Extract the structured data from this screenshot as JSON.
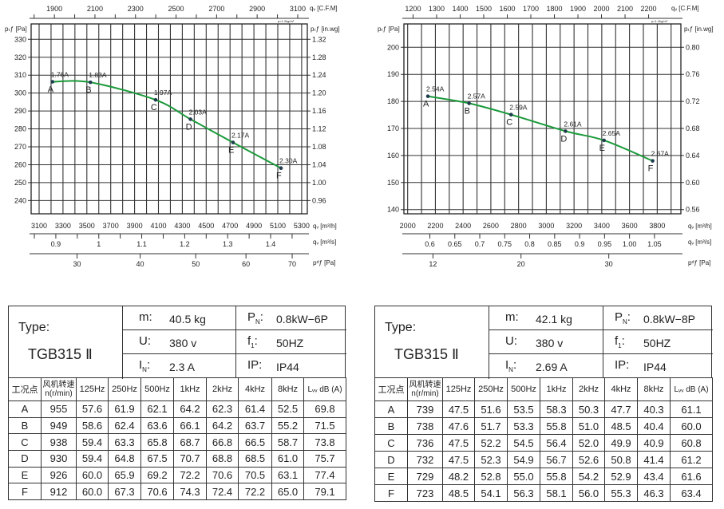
{
  "chart_data": [
    {
      "type": "line",
      "title": "",
      "units": {
        "cfm": "qᵥ [C.F.M]",
        "pa_left": "pₜƒ [Pa]",
        "inwg": "pₜƒ [in.wg]",
        "m3h": "qᵥ [m³/h]",
        "m3s": "qᵥ [m³/s]",
        "pd": "pᵈƒ [Pa]",
        "density": "ρ=1.2kg/m³"
      },
      "xlabel": "qᵥ [m³/h]",
      "ylabel": "pₜƒ [Pa]",
      "xlim": [
        3100,
        5300
      ],
      "ylim": [
        240,
        330
      ],
      "grid": true,
      "x_ticks_m3h": [
        "3100",
        "3300",
        "3500",
        "3700",
        "3900",
        "4100",
        "4300",
        "4500",
        "4700",
        "4900",
        "5100",
        "5300"
      ],
      "y_ticks_pa": [
        "240",
        "250",
        "260",
        "270",
        "280",
        "290",
        "300",
        "310",
        "320",
        "330"
      ],
      "y_ticks_inwg": [
        "0.96",
        "1.00",
        "1.04",
        "1.08",
        "1.12",
        "1.16",
        "1.20",
        "1.24",
        "1.28",
        "1.32"
      ],
      "top_ticks_cfm": [
        "1900",
        "2100",
        "2300",
        "2500",
        "2700",
        "2900",
        "3100"
      ],
      "m3s_ticks": [
        "0.9",
        "1",
        "1.1",
        "1.2",
        "1.3",
        "1.4"
      ],
      "pd_ticks": [
        "30",
        "40",
        "50",
        "60",
        "70"
      ],
      "line_color": "#1a9a3a",
      "point_color": "#1f3d4d",
      "points": [
        {
          "label": "A",
          "current": "1.76A",
          "q_m3h": 3212,
          "p_pa": 306.3
        },
        {
          "label": "B",
          "current": "1.83A",
          "q_m3h": 3530,
          "p_pa": 306.0
        },
        {
          "label": "C",
          "current": "1.97A",
          "q_m3h": 4076,
          "p_pa": 296.2
        },
        {
          "label": "D",
          "current": "2.03A",
          "q_m3h": 4368,
          "p_pa": 285.4
        },
        {
          "label": "E",
          "current": "2.17A",
          "q_m3h": 4725,
          "p_pa": 272.4
        },
        {
          "label": "F",
          "current": "2.30A",
          "q_m3h": 5127,
          "p_pa": 258.1
        }
      ]
    },
    {
      "type": "line",
      "title": "",
      "units": {
        "cfm": "qᵥ [C.F.M]",
        "pa_left": "pₜƒ [Pa]",
        "inwg": "pₜƒ [in.wg]",
        "m3h": "qᵥ [m³/h]",
        "m3s": "qᵥ [m³/s]",
        "pd": "pᵈƒ [Pa]",
        "density": "ρ=1.2kg/m³"
      },
      "xlabel": "qᵥ [m³/h]",
      "ylabel": "pₜƒ [Pa]",
      "xlim": [
        2000,
        3800
      ],
      "ylim": [
        140,
        200
      ],
      "grid": true,
      "x_ticks_m3h": [
        "2000",
        "2200",
        "2400",
        "2600",
        "2800",
        "3000",
        "3200",
        "3400",
        "3600",
        "3800"
      ],
      "y_ticks_pa": [
        "140",
        "150",
        "160",
        "170",
        "180",
        "190",
        "200"
      ],
      "y_ticks_inwg": [
        "0.56",
        "0.60",
        "0.64",
        "0.68",
        "0.72",
        "0.76",
        "0.80"
      ],
      "top_ticks_cfm": [
        "1200",
        "1300",
        "1400",
        "1500",
        "1600",
        "1700",
        "1800",
        "1900",
        "2000",
        "2100",
        "2200"
      ],
      "m3s_ticks": [
        "0.6",
        "0.65",
        "0.7",
        "0.75",
        "0.8",
        "0.85",
        "0.9",
        "0.95",
        "1.00",
        "1.05"
      ],
      "pd_ticks": [
        "12",
        "20",
        "30"
      ],
      "line_color": "#1a9a3a",
      "point_color": "#1f3d4d",
      "points": [
        {
          "label": "A",
          "current": "2.54A",
          "q_m3h": 2146,
          "p_pa": 181.9
        },
        {
          "label": "B",
          "current": "2.57A",
          "q_m3h": 2443,
          "p_pa": 179.3
        },
        {
          "label": "C",
          "current": "2.59A",
          "q_m3h": 2746,
          "p_pa": 175.1
        },
        {
          "label": "D",
          "current": "2.61A",
          "q_m3h": 3138,
          "p_pa": 169.0
        },
        {
          "label": "E",
          "current": "2.65A",
          "q_m3h": 3416,
          "p_pa": 165.6
        },
        {
          "label": "F",
          "current": "2.67A",
          "q_m3h": 3767,
          "p_pa": 158.0
        }
      ]
    }
  ],
  "tables": [
    {
      "type_label": "Type:",
      "model": "TGB315 Ⅱ",
      "specs": {
        "m_label": "m:",
        "m_value": "40.5  kg",
        "u_label": "U:",
        "u_value": "380  v",
        "in_label": "I",
        "in_sub": "N",
        "in_value": "2.3  A",
        "pn_label": "P",
        "pn_sub": "N",
        "pn_value": "0.8kW−6P",
        "f_label": "f",
        "f_sub": "1",
        "f_value": "50HZ",
        "ip_label": "IP:",
        "ip_value": "IP44"
      },
      "headers": [
        "工况点",
        "风机转速\nn(r/min)",
        "125Hz",
        "250Hz",
        "500Hz",
        "1kHz",
        "2kHz",
        "4kHz",
        "8kHz",
        "Lᵥᵥ dB (A)"
      ],
      "rows": [
        [
          "A",
          "955",
          "57.6",
          "61.9",
          "62.1",
          "64.2",
          "62.3",
          "61.4",
          "52.5",
          "69.8"
        ],
        [
          "B",
          "949",
          "58.6",
          "62.4",
          "63.6",
          "66.1",
          "64.2",
          "63.7",
          "55.2",
          "71.5"
        ],
        [
          "C",
          "938",
          "59.4",
          "63.3",
          "65.8",
          "68.7",
          "66.8",
          "66.5",
          "58.7",
          "73.8"
        ],
        [
          "D",
          "930",
          "59.4",
          "64.8",
          "67.5",
          "70.7",
          "68.8",
          "68.5",
          "61.0",
          "75.7"
        ],
        [
          "E",
          "926",
          "60.0",
          "65.9",
          "69.2",
          "72.2",
          "70.6",
          "70.5",
          "63.1",
          "77.4"
        ],
        [
          "F",
          "912",
          "60.0",
          "67.3",
          "70.6",
          "74.3",
          "72.4",
          "72.2",
          "65.0",
          "79.1"
        ]
      ]
    },
    {
      "type_label": "Type:",
      "model": "TGB315 Ⅱ",
      "specs": {
        "m_label": "m:",
        "m_value": "42.1  kg",
        "u_label": "U:",
        "u_value": "380  v",
        "in_label": "I",
        "in_sub": "N",
        "in_value": "2.69  A",
        "pn_label": "P",
        "pn_sub": "N",
        "pn_value": "0.8kW−8P",
        "f_label": "f",
        "f_sub": "1",
        "f_value": "50HZ",
        "ip_label": "IP:",
        "ip_value": "IP44"
      },
      "headers": [
        "工况点",
        "风机转速\nn(r/min)",
        "125Hz",
        "250Hz",
        "500Hz",
        "1kHz",
        "2kHz",
        "4kHz",
        "8kHz",
        "Lᵥᵥ dB (A)"
      ],
      "rows": [
        [
          "A",
          "739",
          "47.5",
          "51.6",
          "53.5",
          "58.3",
          "50.3",
          "47.7",
          "40.3",
          "61.1"
        ],
        [
          "B",
          "738",
          "47.6",
          "51.7",
          "53.3",
          "55.8",
          "51.0",
          "48.5",
          "40.4",
          "60.0"
        ],
        [
          "C",
          "736",
          "47.5",
          "52.2",
          "54.5",
          "56.4",
          "52.0",
          "49.9",
          "40.9",
          "60.8"
        ],
        [
          "D",
          "732",
          "47.5",
          "52.3",
          "54.9",
          "56.7",
          "52.6",
          "50.8",
          "41.4",
          "61.2"
        ],
        [
          "E",
          "729",
          "48.2",
          "52.8",
          "55.0",
          "55.8",
          "54.2",
          "52.9",
          "43.4",
          "61.6"
        ],
        [
          "F",
          "723",
          "48.5",
          "54.1",
          "56.3",
          "58.1",
          "56.0",
          "55.3",
          "46.3",
          "63.4"
        ]
      ]
    }
  ]
}
